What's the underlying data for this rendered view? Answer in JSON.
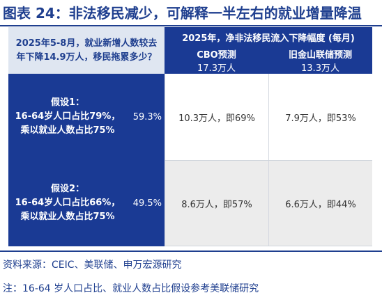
{
  "title": "图表 24：非法移民减少，可解释一半左右的就业增量降温",
  "question": "2025年5-8月，就业新增人数较去年下降14.9万人，移民拖累多少？",
  "header": {
    "main": "2025年，净非法移民流入下降幅度  (每月)",
    "columns": [
      {
        "label": "CBO预测",
        "value": "17.3万人"
      },
      {
        "label": "旧金山联储预测",
        "value": "13.3万人"
      }
    ]
  },
  "rows": [
    {
      "assumption": [
        "假设1：",
        "16-64岁人口占比79%，",
        "乘以就业人数占比75%"
      ],
      "pct": "59.3%",
      "cbo": "10.3万人，即69%",
      "sf": "7.9万人，即53%"
    },
    {
      "assumption": [
        "假设2：",
        "16-64岁人口占比66%，",
        "乘以就业人数占比75%"
      ],
      "pct": "49.5%",
      "cbo": "8.6万人，即57%",
      "sf": "6.6万人，即44%"
    }
  ],
  "source": "资料来源：CEIC、美联储、申万宏源研究",
  "note": "注：16-64 岁人口占比、就业人数占比假设参考美联储研究"
}
